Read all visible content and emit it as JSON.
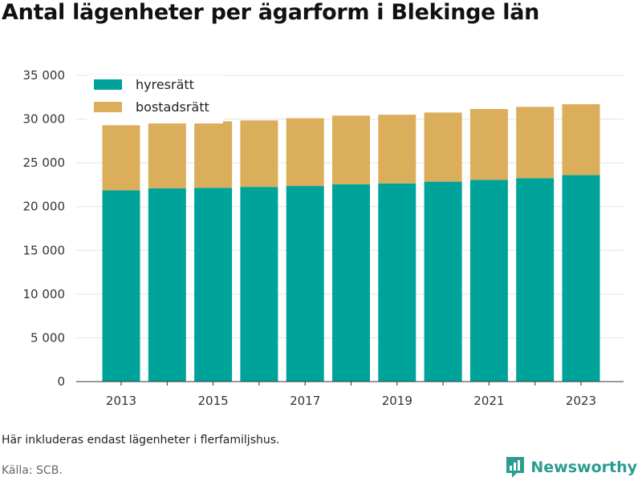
{
  "title": "Antal lägenheter per ägarform i Blekinge län",
  "note": "Här inkluderas endast lägenheter i flerfamiljshus.",
  "source": "Källa: SCB.",
  "brand": {
    "name": "Newsworthy",
    "icon": "newsworthy-logo-icon",
    "color": "#2a9d8f"
  },
  "chart_data": {
    "type": "bar",
    "stacked": true,
    "categories": [
      2013,
      2014,
      2015,
      2016,
      2017,
      2018,
      2019,
      2020,
      2021,
      2022,
      2023
    ],
    "x_tick_labels": [
      "2013",
      "2015",
      "2017",
      "2019",
      "2021",
      "2023"
    ],
    "series": [
      {
        "name": "hyresrätt",
        "color": "#00a39a",
        "values": [
          21850,
          22100,
          22150,
          22250,
          22350,
          22550,
          22650,
          22850,
          23050,
          23250,
          23600
        ]
      },
      {
        "name": "bostadsrätt",
        "color": "#dbae5b",
        "values": [
          7450,
          7550,
          7600,
          7600,
          7750,
          7850,
          7850,
          7900,
          8100,
          8150,
          8100
        ]
      }
    ],
    "ylim": [
      0,
      35000
    ],
    "y_ticks": [
      0,
      5000,
      10000,
      15000,
      20000,
      25000,
      30000,
      35000
    ],
    "y_tick_labels": [
      "0",
      "5 000",
      "10 000",
      "15 000",
      "20 000",
      "25 000",
      "30 000",
      "35 000"
    ],
    "xlabel": "",
    "ylabel": "",
    "grid": true,
    "legend_position": "top-left"
  }
}
